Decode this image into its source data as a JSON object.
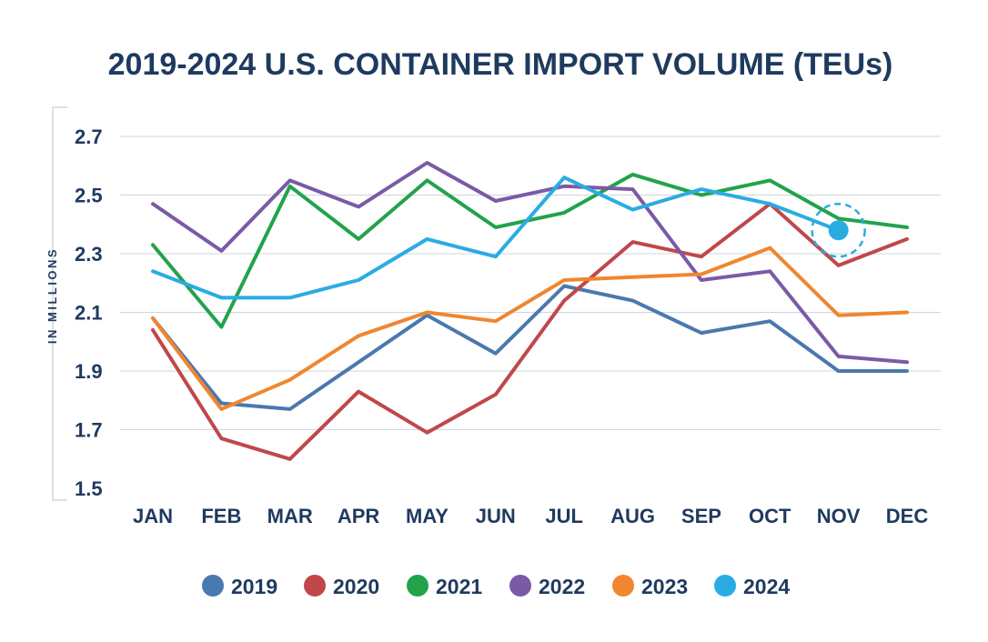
{
  "chart_data": {
    "type": "line",
    "title": "2019-2024 U.S. CONTAINER IMPORT VOLUME (TEUs)",
    "xlabel": "",
    "ylabel": "IN MILLIONS",
    "ylim": [
      1.5,
      2.7
    ],
    "yticks": [
      "2.7",
      "2.5",
      "2.3",
      "2.1",
      "1.9",
      "1.7",
      "1.5"
    ],
    "ytick_values": [
      2.7,
      2.5,
      2.3,
      2.1,
      1.9,
      1.7,
      1.5
    ],
    "categories": [
      "JAN",
      "FEB",
      "MAR",
      "APR",
      "MAY",
      "JUN",
      "JUL",
      "AUG",
      "SEP",
      "OCT",
      "NOV",
      "DEC"
    ],
    "series": [
      {
        "name": "2019",
        "color": "#4a78b0",
        "values": [
          2.08,
          1.79,
          1.77,
          1.93,
          2.09,
          1.96,
          2.19,
          2.14,
          2.03,
          2.07,
          1.9,
          1.9
        ]
      },
      {
        "name": "2020",
        "color": "#c0474a",
        "values": [
          2.04,
          1.67,
          1.6,
          1.83,
          1.69,
          1.82,
          2.14,
          2.34,
          2.29,
          2.47,
          2.26,
          2.35
        ]
      },
      {
        "name": "2021",
        "color": "#22a34b",
        "values": [
          2.33,
          2.05,
          2.53,
          2.35,
          2.55,
          2.39,
          2.44,
          2.57,
          2.5,
          2.55,
          2.42,
          2.39
        ]
      },
      {
        "name": "2022",
        "color": "#7a5aa6",
        "values": [
          2.47,
          2.31,
          2.55,
          2.46,
          2.61,
          2.48,
          2.53,
          2.52,
          2.21,
          2.24,
          1.95,
          1.93
        ]
      },
      {
        "name": "2023",
        "color": "#f0862f",
        "values": [
          2.08,
          1.77,
          1.87,
          2.02,
          2.1,
          2.07,
          2.21,
          2.22,
          2.23,
          2.32,
          2.09,
          2.1
        ]
      },
      {
        "name": "2024",
        "color": "#2aace2",
        "values": [
          2.24,
          2.15,
          2.15,
          2.21,
          2.35,
          2.29,
          2.56,
          2.45,
          2.52,
          2.47,
          2.38,
          null
        ]
      }
    ],
    "highlight": {
      "series": "2024",
      "category": "NOV",
      "value": 2.38
    }
  }
}
